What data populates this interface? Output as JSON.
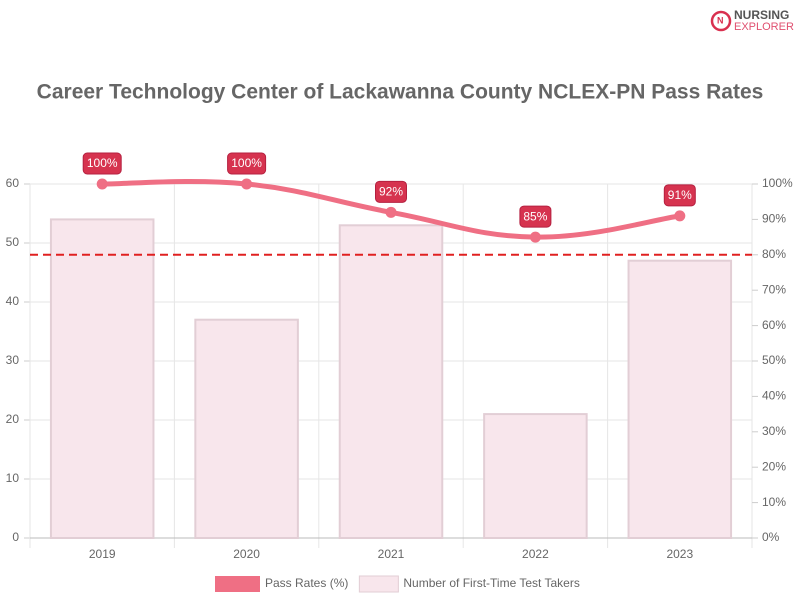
{
  "brand": {
    "line1": "NURSING",
    "line2": "EXPLORER"
  },
  "chart_data": {
    "type": "bar-line",
    "title": "Career Technology Center of Lackawanna County NCLEX-PN Pass Rates",
    "categories": [
      "2019",
      "2020",
      "2021",
      "2022",
      "2023"
    ],
    "series": [
      {
        "name": "Pass Rates (%)",
        "type": "line",
        "axis": "y2",
        "color": "#ef6f84",
        "values": [
          100,
          100,
          92,
          85,
          91
        ],
        "value_labels": [
          "100%",
          "100%",
          "92%",
          "85%",
          "91%"
        ]
      },
      {
        "name": "Number of First-Time Test Takers",
        "type": "bar",
        "color": "#f8e6ec",
        "values": [
          54,
          37,
          53,
          21,
          47
        ]
      }
    ],
    "ylim": [
      0,
      60
    ],
    "yticks": [
      0,
      10,
      20,
      30,
      40,
      50,
      60
    ],
    "y2lim": [
      0,
      100
    ],
    "y2ticks": [
      {
        "value": 0,
        "label": "0%"
      },
      {
        "value": 10,
        "label": "10%"
      },
      {
        "value": 20,
        "label": "20%"
      },
      {
        "value": 30,
        "label": "30%"
      },
      {
        "value": 40,
        "label": "40%"
      },
      {
        "value": 50,
        "label": "50%"
      },
      {
        "value": 60,
        "label": "60%"
      },
      {
        "value": 70,
        "label": "70%"
      },
      {
        "value": 80,
        "label": "80%"
      },
      {
        "value": 90,
        "label": "90%"
      },
      {
        "value": 100,
        "label": "100%"
      }
    ],
    "reference_line": {
      "value": 80,
      "axis": "y2",
      "color": "#e02020"
    },
    "grid": true,
    "legend": "bottom"
  }
}
